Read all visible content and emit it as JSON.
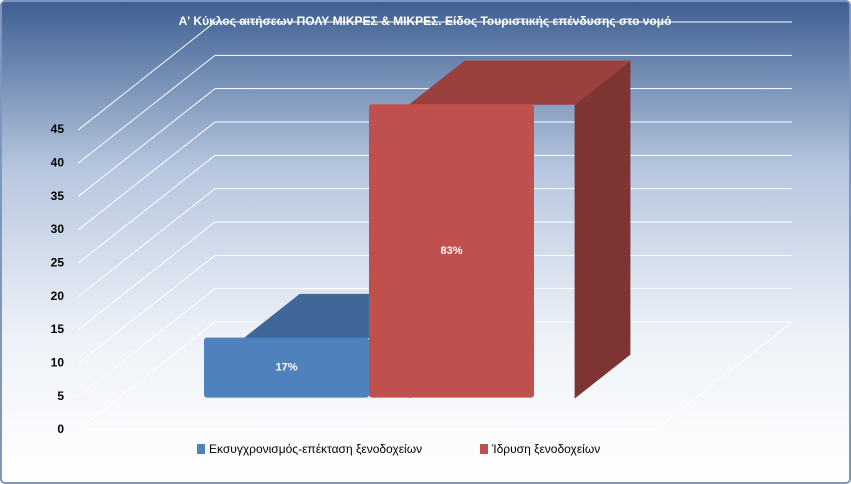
{
  "chart_data": {
    "type": "bar3d",
    "title": "Α' Κύκλος αιτήσεων ΠΟΛΥ ΜΙΚΡΕΣ & ΜΙΚΡΕΣ. Είδος Τουριστικής επένδυσης στο νομό",
    "categories": [
      null
    ],
    "series": [
      {
        "name": "Εκσυγχρονισμός-επέκταση ξενοδοχείων",
        "color": "#4f81bd",
        "values": [
          9
        ],
        "value_labels": [
          "17%"
        ]
      },
      {
        "name": "Ίδρυση ξενοδοχείων",
        "color": "#c0504d",
        "values": [
          44
        ],
        "value_labels": [
          "83%"
        ]
      }
    ],
    "ylim": [
      0,
      45
    ],
    "yticks": [
      0,
      5,
      10,
      15,
      20,
      25,
      30,
      35,
      40,
      45
    ],
    "grid": true,
    "legend": "bottom"
  }
}
